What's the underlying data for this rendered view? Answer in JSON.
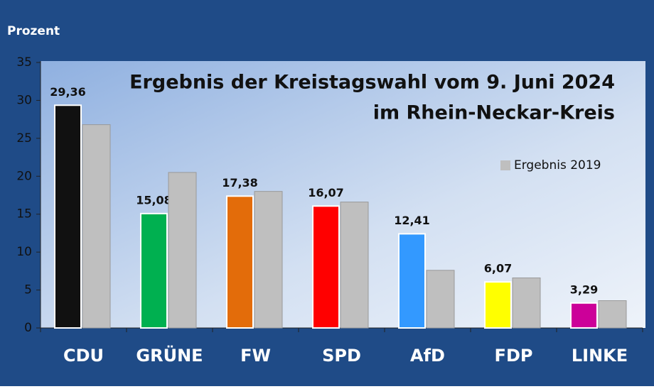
{
  "chart_data": {
    "type": "bar",
    "title_lines": [
      "Ergebnis der Kreistagswahl vom 9. Juni 2024",
      "im Rhein-Neckar-Kreis"
    ],
    "y_axis_label": "Prozent",
    "categories": [
      "CDU",
      "GRÜNE",
      "FW",
      "SPD",
      "AfD",
      "FDP",
      "LINKE"
    ],
    "series": [
      {
        "colors": [
          "#111111",
          "#00b050",
          "#e36c0a",
          "#ff0000",
          "#3399ff",
          "#ffff00",
          "#cc0099"
        ],
        "values": [
          29.36,
          15.08,
          17.38,
          16.07,
          12.41,
          6.07,
          3.29
        ],
        "value_labels": [
          "29,36",
          "15,08",
          "17,38",
          "16,07",
          "12,41",
          "6,07",
          "3,29"
        ]
      },
      {
        "name": "Ergebnis 2019",
        "color": "#bfbfbf",
        "values": [
          26.8,
          20.5,
          18.0,
          16.6,
          7.6,
          6.6,
          3.6
        ]
      }
    ],
    "ylim": [
      0,
      35
    ],
    "yticks": [
      0,
      5,
      10,
      15,
      20,
      25,
      30,
      35
    ],
    "legend": "right"
  }
}
